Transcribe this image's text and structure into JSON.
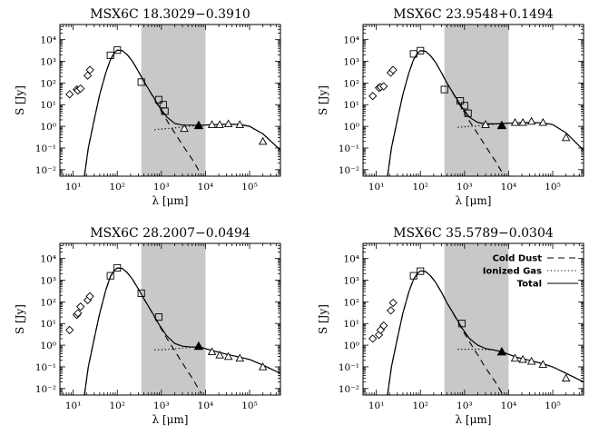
{
  "chart_data": [
    {
      "type": "scatter",
      "title": "MSX6C 18.3029−0.3910",
      "xlabel": "λ [μm]",
      "ylabel": "S [Jy]",
      "xscale": "log",
      "yscale": "log",
      "xlim": [
        5,
        500000
      ],
      "ylim": [
        0.005,
        50000
      ],
      "xticks": [
        "10¹",
        "10²",
        "10³",
        "10⁴",
        "10⁵"
      ],
      "yticks": [
        "10⁻²",
        "10⁻¹",
        "10⁰",
        "10¹",
        "10²",
        "10³",
        "10⁴"
      ],
      "shaded_band": [
        350,
        10000
      ],
      "series": [
        {
          "marker": "diamond",
          "x": [
            8.3,
            12.1,
            12.8,
            14.7,
            21.3,
            24.0
          ],
          "y": [
            30,
            50,
            45,
            55,
            220,
            400
          ]
        },
        {
          "marker": "square",
          "x": [
            70,
            100,
            350,
            870,
            1100,
            1200
          ],
          "y": [
            1900,
            3300,
            110,
            17,
            10,
            5
          ]
        },
        {
          "marker": "triangle-open",
          "x": [
            3300,
            14000,
            21000,
            33000,
            60000,
            200000
          ],
          "y": [
            0.8,
            1.2,
            1.2,
            1.3,
            1.2,
            0.2
          ]
        },
        {
          "marker": "triangle-filled",
          "x": [
            7000
          ],
          "y": [
            1.1
          ]
        }
      ],
      "curves": {
        "cold_dust": {
          "x": [
            18,
            22,
            30,
            40,
            55,
            70,
            85,
            100,
            130,
            170,
            220,
            300,
            400,
            600,
            900,
            1300,
            2000,
            3000,
            5000,
            8000
          ],
          "y": [
            0.005,
            0.1,
            2,
            30,
            300,
            1200,
            2400,
            3300,
            3100,
            2000,
            1000,
            350,
            120,
            30,
            7,
            2,
            0.5,
            0.14,
            0.03,
            0.006
          ]
        },
        "ionized_gas": {
          "x": [
            700,
            1000,
            2000,
            4000,
            7000,
            15000,
            30000,
            60000,
            100000,
            200000,
            500000
          ],
          "y": [
            0.7,
            0.75,
            0.85,
            1.0,
            1.1,
            1.2,
            1.25,
            1.22,
            1.0,
            0.45,
            0.08
          ]
        },
        "total": {
          "x": [
            18,
            22,
            30,
            40,
            55,
            70,
            85,
            100,
            130,
            170,
            220,
            300,
            400,
            600,
            900,
            1300,
            2000,
            3000,
            5000,
            7000,
            15000,
            30000,
            60000,
            100000,
            200000,
            500000
          ],
          "y": [
            0.005,
            0.1,
            2,
            30,
            300,
            1200,
            2400,
            3300,
            3100,
            2000,
            1000,
            350,
            120,
            31,
            7.8,
            2.8,
            1.35,
            1.14,
            1.13,
            1.1,
            1.2,
            1.25,
            1.22,
            1.0,
            0.45,
            0.08
          ]
        }
      }
    },
    {
      "type": "scatter",
      "title": "MSX6C 23.9548+0.1494",
      "xlabel": "λ [μm]",
      "ylabel": "S [Jy]",
      "xscale": "log",
      "yscale": "log",
      "xlim": [
        5,
        500000
      ],
      "ylim": [
        0.005,
        50000
      ],
      "xticks": [
        "10¹",
        "10²",
        "10³",
        "10⁴",
        "10⁵"
      ],
      "yticks": [
        "10⁻²",
        "10⁻¹",
        "10⁰",
        "10¹",
        "10²",
        "10³",
        "10⁴"
      ],
      "shaded_band": [
        350,
        10000
      ],
      "series": [
        {
          "marker": "diamond",
          "x": [
            8.3,
            11.5,
            12.5,
            14.7,
            21.3,
            24.0
          ],
          "y": [
            25,
            60,
            65,
            70,
            300,
            400
          ]
        },
        {
          "marker": "square",
          "x": [
            70,
            100,
            350,
            800,
            1000,
            1200
          ],
          "y": [
            2200,
            3100,
            50,
            15,
            9,
            4
          ]
        },
        {
          "marker": "triangle-open",
          "x": [
            3000,
            14000,
            21000,
            33000,
            60000,
            200000
          ],
          "y": [
            1.2,
            1.5,
            1.5,
            1.7,
            1.5,
            0.3
          ]
        },
        {
          "marker": "triangle-filled",
          "x": [
            7000
          ],
          "y": [
            1.1
          ]
        }
      ],
      "curves": {
        "cold_dust": {
          "x": [
            18,
            22,
            30,
            40,
            55,
            70,
            85,
            100,
            130,
            170,
            220,
            300,
            400,
            600,
            900,
            1300,
            2000,
            3000,
            5000,
            8000
          ],
          "y": [
            0.005,
            0.1,
            2,
            30,
            300,
            1200,
            2300,
            3100,
            2900,
            1800,
            900,
            300,
            100,
            25,
            6,
            1.7,
            0.45,
            0.12,
            0.025,
            0.005
          ]
        },
        "ionized_gas": {
          "x": [
            700,
            1000,
            2000,
            4000,
            7000,
            15000,
            30000,
            60000,
            100000,
            200000,
            500000
          ],
          "y": [
            0.9,
            0.95,
            1.05,
            1.2,
            1.35,
            1.45,
            1.5,
            1.45,
            1.2,
            0.5,
            0.08
          ]
        },
        "total": {
          "x": [
            18,
            22,
            30,
            40,
            55,
            70,
            85,
            100,
            130,
            170,
            220,
            300,
            400,
            600,
            900,
            1300,
            2000,
            3000,
            5000,
            7000,
            15000,
            30000,
            60000,
            100000,
            200000,
            500000
          ],
          "y": [
            0.005,
            0.1,
            2,
            30,
            300,
            1200,
            2300,
            3100,
            2900,
            1800,
            900,
            300,
            100,
            26,
            7,
            2.6,
            1.5,
            1.3,
            1.3,
            1.35,
            1.45,
            1.5,
            1.45,
            1.2,
            0.5,
            0.08
          ]
        }
      }
    },
    {
      "type": "scatter",
      "title": "MSX6C 28.2007−0.0494",
      "xlabel": "λ [μm]",
      "ylabel": "S [Jy]",
      "xscale": "log",
      "yscale": "log",
      "xlim": [
        5,
        500000
      ],
      "ylim": [
        0.005,
        50000
      ],
      "xticks": [
        "10¹",
        "10²",
        "10³",
        "10⁴",
        "10⁵"
      ],
      "yticks": [
        "10⁻²",
        "10⁻¹",
        "10⁰",
        "10¹",
        "10²",
        "10³",
        "10⁴"
      ],
      "shaded_band": [
        350,
        10000
      ],
      "series": [
        {
          "marker": "diamond",
          "x": [
            8.3,
            12.1,
            12.8,
            14.7,
            21.3,
            24.0
          ],
          "y": [
            5,
            25,
            30,
            60,
            120,
            180
          ]
        },
        {
          "marker": "square",
          "x": [
            70,
            100,
            350,
            870
          ],
          "y": [
            1600,
            3700,
            250,
            20
          ]
        },
        {
          "marker": "triangle-open",
          "x": [
            14000,
            21000,
            33000,
            60000,
            200000
          ],
          "y": [
            0.5,
            0.35,
            0.3,
            0.25,
            0.1
          ]
        },
        {
          "marker": "triangle-filled",
          "x": [
            7000
          ],
          "y": [
            0.9
          ]
        }
      ],
      "curves": {
        "cold_dust": {
          "x": [
            18,
            22,
            30,
            40,
            55,
            70,
            85,
            100,
            130,
            170,
            220,
            300,
            400,
            600,
            900,
            1300,
            2000,
            3000,
            5000,
            8000
          ],
          "y": [
            0.005,
            0.1,
            2,
            30,
            350,
            1500,
            2800,
            3700,
            3500,
            2200,
            1100,
            400,
            140,
            35,
            8,
            2.2,
            0.55,
            0.15,
            0.03,
            0.006
          ]
        },
        "ionized_gas": {
          "x": [
            700,
            1000,
            2000,
            4000,
            7000,
            15000,
            30000,
            60000,
            100000,
            200000,
            500000
          ],
          "y": [
            0.6,
            0.62,
            0.68,
            0.78,
            0.85,
            0.55,
            0.38,
            0.28,
            0.22,
            0.12,
            0.05
          ]
        },
        "total": {
          "x": [
            18,
            22,
            30,
            40,
            55,
            70,
            85,
            100,
            130,
            170,
            220,
            300,
            400,
            600,
            900,
            1300,
            2000,
            3000,
            5000,
            7000,
            15000,
            30000,
            60000,
            100000,
            200000,
            500000
          ],
          "y": [
            0.005,
            0.1,
            2,
            30,
            350,
            1500,
            2800,
            3700,
            3500,
            2200,
            1100,
            400,
            140,
            36,
            8.6,
            2.8,
            1.2,
            0.9,
            0.82,
            0.85,
            0.55,
            0.38,
            0.28,
            0.22,
            0.12,
            0.05
          ]
        }
      }
    },
    {
      "type": "scatter",
      "title": "MSX6C 35.5789−0.0304",
      "xlabel": "λ [μm]",
      "ylabel": "S [Jy]",
      "xscale": "log",
      "yscale": "log",
      "xlim": [
        5,
        500000
      ],
      "ylim": [
        0.005,
        50000
      ],
      "xticks": [
        "10¹",
        "10²",
        "10³",
        "10⁴",
        "10⁵"
      ],
      "yticks": [
        "10⁻²",
        "10⁻¹",
        "10⁰",
        "10¹",
        "10²",
        "10³",
        "10⁴"
      ],
      "shaded_band": [
        350,
        10000
      ],
      "series": [
        {
          "marker": "diamond",
          "x": [
            8.3,
            11.5,
            12.5,
            14.7,
            21.3,
            24.0
          ],
          "y": [
            2,
            3,
            5,
            8,
            40,
            90
          ]
        },
        {
          "marker": "square",
          "x": [
            70,
            100,
            870
          ],
          "y": [
            1600,
            2600,
            10
          ]
        },
        {
          "marker": "triangle-open",
          "x": [
            14000,
            21000,
            33000,
            60000,
            200000
          ],
          "y": [
            0.25,
            0.22,
            0.18,
            0.13,
            0.03
          ]
        },
        {
          "marker": "triangle-filled",
          "x": [
            7000
          ],
          "y": [
            0.5
          ]
        }
      ],
      "curves": {
        "cold_dust": {
          "x": [
            18,
            22,
            30,
            40,
            55,
            70,
            85,
            100,
            130,
            170,
            220,
            300,
            400,
            600,
            900,
            1300,
            2000,
            3000,
            5000,
            8000
          ],
          "y": [
            0.005,
            0.1,
            2,
            30,
            300,
            1100,
            2000,
            2700,
            2500,
            1600,
            800,
            280,
            90,
            22,
            5,
            1.4,
            0.35,
            0.09,
            0.02,
            0.004
          ]
        },
        "ionized_gas": {
          "x": [
            700,
            1000,
            2000,
            4000,
            7000,
            15000,
            30000,
            60000,
            100000,
            200000,
            500000
          ],
          "y": [
            0.65,
            0.65,
            0.66,
            0.62,
            0.5,
            0.28,
            0.2,
            0.14,
            0.1,
            0.05,
            0.02
          ]
        },
        "total": {
          "x": [
            18,
            22,
            30,
            40,
            55,
            70,
            85,
            100,
            130,
            170,
            220,
            300,
            400,
            600,
            900,
            1300,
            2000,
            3000,
            5000,
            7000,
            15000,
            30000,
            60000,
            100000,
            200000,
            500000
          ],
          "y": [
            0.005,
            0.1,
            2,
            30,
            300,
            1100,
            2000,
            2700,
            2500,
            1600,
            800,
            280,
            90,
            23,
            5.7,
            2,
            1,
            0.7,
            0.58,
            0.5,
            0.28,
            0.2,
            0.14,
            0.1,
            0.05,
            0.02
          ]
        }
      },
      "legend": {
        "placement": "top-right",
        "entries": [
          {
            "label": "Cold Dust",
            "style": "dashed"
          },
          {
            "label": "Ionized Gas",
            "style": "dotted"
          },
          {
            "label": "Total",
            "style": "solid"
          }
        ]
      }
    }
  ]
}
